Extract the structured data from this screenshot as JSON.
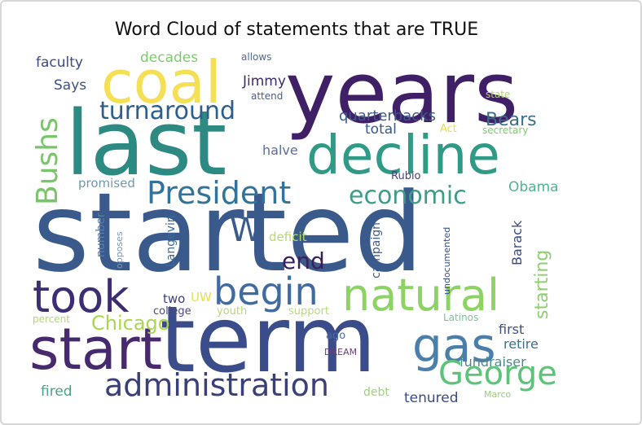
{
  "chart_data": {
    "type": "wordcloud",
    "title": "Word Cloud of statements that are TRUE",
    "words": [
      {
        "text": "started",
        "weight": 100,
        "color": "#3b5a8c"
      },
      {
        "text": "term",
        "weight": 82,
        "color": "#3a4d8a"
      },
      {
        "text": "last",
        "weight": 78,
        "color": "#2d8a83"
      },
      {
        "text": "years",
        "weight": 72,
        "color": "#3f1f66"
      },
      {
        "text": "coal",
        "weight": 52,
        "color": "#f5df55"
      },
      {
        "text": "decline",
        "weight": 50,
        "color": "#2f9a86"
      },
      {
        "text": "start",
        "weight": 48,
        "color": "#472a6e"
      },
      {
        "text": "gas",
        "weight": 42,
        "color": "#4b7ea8"
      },
      {
        "text": "took",
        "weight": 40,
        "color": "#3f2d73"
      },
      {
        "text": "natural",
        "weight": 40,
        "color": "#8dd364"
      },
      {
        "text": "begin",
        "weight": 36,
        "color": "#3f6ba0"
      },
      {
        "text": "George",
        "weight": 32,
        "color": "#5cc378"
      },
      {
        "text": "W",
        "weight": 32,
        "color": "#3a5b8c"
      },
      {
        "text": "President",
        "weight": 30,
        "color": "#33739b"
      },
      {
        "text": "administration",
        "weight": 30,
        "color": "#3a3f7a"
      },
      {
        "text": "Bushs",
        "weight": 30,
        "color": "#78c56a"
      },
      {
        "text": "economic",
        "weight": 26,
        "color": "#3f9b8a"
      },
      {
        "text": "turnaround",
        "weight": 22,
        "color": "#2c5e8e"
      },
      {
        "text": "end",
        "weight": 21,
        "color": "#3a1f5a"
      },
      {
        "text": "Chicago",
        "weight": 18,
        "color": "#a8d84a"
      },
      {
        "text": "starting",
        "weight": 16,
        "color": "#8dcf72"
      },
      {
        "text": "Bears",
        "weight": 16,
        "color": "#3a6f8a"
      },
      {
        "text": "Obama",
        "weight": 13,
        "color": "#4fb492"
      },
      {
        "text": "quarterbacks",
        "weight": 13,
        "color": "#3c5a8c"
      },
      {
        "text": "faculty",
        "weight": 12,
        "color": "#3e4a82"
      },
      {
        "text": "decades",
        "weight": 12,
        "color": "#7ccb6a"
      },
      {
        "text": "Says",
        "weight": 12,
        "color": "#3c4f86"
      },
      {
        "text": "Jimmy",
        "weight": 12,
        "color": "#3b2c6a"
      },
      {
        "text": "total",
        "weight": 12,
        "color": "#36588c"
      },
      {
        "text": "tenured",
        "weight": 12,
        "color": "#3a4a82"
      },
      {
        "text": "fired",
        "weight": 12,
        "color": "#4aa18a"
      },
      {
        "text": "first",
        "weight": 11,
        "color": "#3c4f86"
      },
      {
        "text": "retire",
        "weight": 11,
        "color": "#3c6f8a"
      },
      {
        "text": "fundraiser",
        "weight": 11,
        "color": "#4a8a8c"
      },
      {
        "text": "halve",
        "weight": 11,
        "color": "#5b6ea0"
      },
      {
        "text": "promised",
        "weight": 11,
        "color": "#6e9ab0"
      },
      {
        "text": "Barack",
        "weight": 11,
        "color": "#3b4a86"
      },
      {
        "text": "Langevin",
        "weight": 11,
        "color": "#3c6a96"
      },
      {
        "text": "number",
        "weight": 11,
        "color": "#5a7ea6"
      },
      {
        "text": "two",
        "weight": 11,
        "color": "#3a3f7a"
      },
      {
        "text": "UW",
        "weight": 11,
        "color": "#e8df4a"
      },
      {
        "text": "campaign",
        "weight": 10,
        "color": "#3f5a8c"
      },
      {
        "text": "deficit",
        "weight": 10,
        "color": "#b6dc6a"
      },
      {
        "text": "allows",
        "weight": 9,
        "color": "#4b6b9e"
      },
      {
        "text": "attend",
        "weight": 9,
        "color": "#4a5a92"
      },
      {
        "text": "state",
        "weight": 9,
        "color": "#b2d86a"
      },
      {
        "text": "Act",
        "weight": 9,
        "color": "#e8df4a"
      },
      {
        "text": "secretary",
        "weight": 9,
        "color": "#7ccb6a"
      },
      {
        "text": "Rubio",
        "weight": 9,
        "color": "#4b3f7a"
      },
      {
        "text": "undocumented",
        "weight": 9,
        "color": "#3a4f86"
      },
      {
        "text": "opposes",
        "weight": 8,
        "color": "#7a9ab6"
      },
      {
        "text": "college",
        "weight": 9,
        "color": "#4a4a82"
      },
      {
        "text": "youth",
        "weight": 9,
        "color": "#b9d77a"
      },
      {
        "text": "support",
        "weight": 9,
        "color": "#b8dc7a"
      },
      {
        "text": "percent",
        "weight": 9,
        "color": "#b6d874"
      },
      {
        "text": "Latinos",
        "weight": 9,
        "color": "#7cc59a"
      },
      {
        "text": "ago",
        "weight": 9,
        "color": "#4a6aa0"
      },
      {
        "text": "DREAM",
        "weight": 8,
        "color": "#6b3f7a"
      },
      {
        "text": "debt",
        "weight": 9,
        "color": "#a0d080"
      },
      {
        "text": "Marco",
        "weight": 8,
        "color": "#9ccc7a"
      }
    ]
  }
}
